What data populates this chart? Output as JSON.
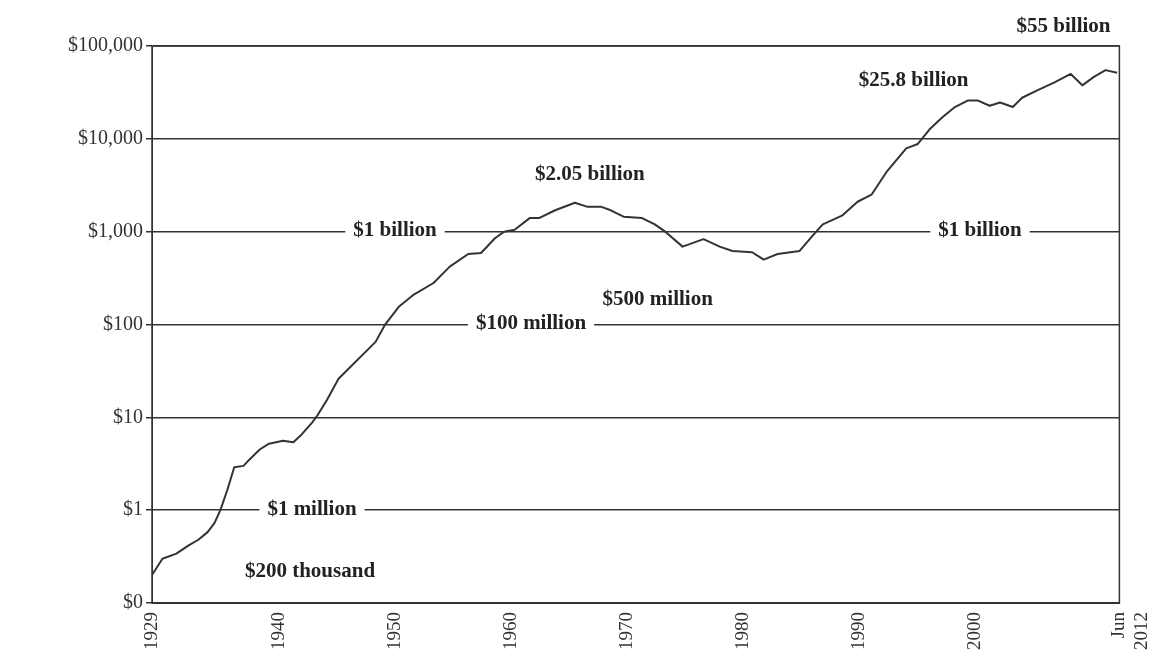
{
  "chart_data": {
    "type": "line",
    "color": "#333333",
    "grid": "y",
    "log": "y",
    "marker": "none",
    "line_style": "solid",
    "x": [
      1929,
      1929.9,
      1931.1,
      1932.2,
      1933,
      1933.8,
      1934.4,
      1934.9,
      1935.5,
      1936.1,
      1936.9,
      1937.4,
      1938.3,
      1939.1,
      1940.3,
      1941.2,
      1941.9,
      1942.8,
      1943.3,
      1944.1,
      1945.1,
      1948.3,
      1949.1,
      1950.3,
      1951.6,
      1953.3,
      1954.7,
      1956.3,
      1957.4,
      1958.6,
      1959.4,
      1960.3,
      1961.6,
      1962.4,
      1963.8,
      1965.5,
      1966.6,
      1967.8,
      1968.6,
      1969.7,
      1971.3,
      1972.4,
      1973.3,
      1974.8,
      1976.6,
      1978,
      1979.1,
      1980.8,
      1981.8,
      1983,
      1984.1,
      1984.9,
      1986.1,
      1986.9,
      1988.6,
      1989.9,
      1991.1,
      1992.4,
      1994.1,
      1995.1,
      1996.1,
      1997.2,
      1998.3,
      1999.4,
      2000.3,
      2001.3,
      2002.2,
      2003.3,
      2004.1,
      2005.5,
      2006.9,
      2008.3,
      2009.3,
      2010.3,
      2011.3,
      2012.3
    ],
    "values": [
      0.2,
      0.3,
      0.34,
      0.42,
      0.48,
      0.58,
      0.73,
      1,
      1.65,
      2.9,
      3,
      3.5,
      4.5,
      5.2,
      5.6,
      5.4,
      6.5,
      8.7,
      10.6,
      15.4,
      26,
      65,
      99,
      155,
      210,
      280,
      420,
      575,
      590,
      850,
      1000,
      1050,
      1400,
      1400,
      1700,
      2050,
      1850,
      1850,
      1700,
      1450,
      1400,
      1200,
      1000,
      690,
      830,
      690,
      620,
      600,
      500,
      575,
      600,
      620,
      930,
      1200,
      1500,
      2100,
      2500,
      4400,
      7900,
      8800,
      12600,
      17000,
      22000,
      25800,
      25800,
      22700,
      24600,
      22000,
      27700,
      33700,
      40600,
      50000,
      37700,
      46500,
      55000,
      51600
    ],
    "xlim": [
      1929,
      2012.5
    ],
    "xticks": [
      1929,
      1940,
      1950,
      1960,
      1970,
      1980,
      1990,
      2000,
      {
        "value": 2012.5,
        "label": "Jun 2012"
      }
    ],
    "ylim": [
      0.1,
      100000
    ],
    "yticks": [
      {
        "value": 0.1,
        "label": "$0"
      },
      {
        "value": 1,
        "label": "$1"
      },
      {
        "value": 10,
        "label": "$10"
      },
      {
        "value": 100,
        "label": "$100"
      },
      {
        "value": 1000,
        "label": "$1,000"
      },
      {
        "value": 10000,
        "label": "$10,000"
      },
      {
        "value": 100000,
        "label": "$100,000"
      }
    ],
    "annotations": [
      {
        "text": "$55 billion",
        "x": 2011.3,
        "y": 55000
      },
      {
        "text": "$25.8 billion",
        "x": 1999.4,
        "y": 25800
      },
      {
        "text": "$2.05 billion",
        "x": 1965.5,
        "y": 2050
      },
      "$1 billion",
      "$1 billion",
      {
        "text": "$500 million",
        "x": 1981.8,
        "y": 500
      },
      "$100 million",
      "$1 million",
      "$200 thousand"
    ]
  }
}
